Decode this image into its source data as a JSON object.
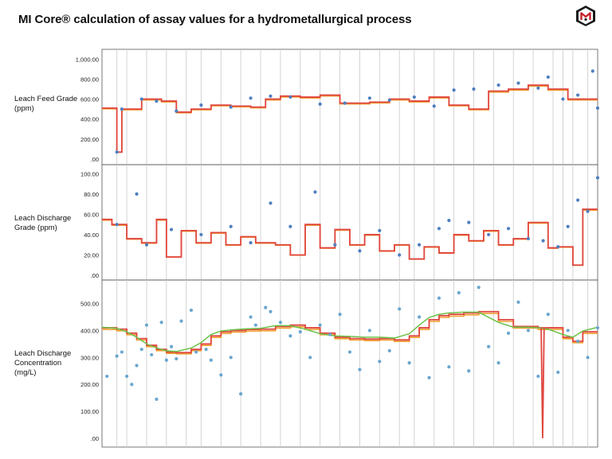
{
  "title": "MI Core® calculation of assay values for a hydrometallurgical process",
  "logo_icon": "mi-cube-logo-icon",
  "colors": {
    "step_line": "#e0463f",
    "orange_line": "#f0a030",
    "green_line": "#6cc24a",
    "points": "#4f7fbf",
    "points_light": "#6aa6cf",
    "grid": "#cfcfcf",
    "border": "#555555"
  },
  "panels": [
    {
      "label_lines": [
        "Leach Feed Grade",
        "(ppm)"
      ]
    },
    {
      "label_lines": [
        "Leach Discharge",
        "Grade (ppm)"
      ]
    },
    {
      "label_lines": [
        "Leach Discharge",
        "Concentration",
        "(mg/L)"
      ]
    }
  ],
  "chart_data": [
    {
      "type": "line",
      "name": "Leach Feed Grade (ppm)",
      "ylim": [
        0,
        1050
      ],
      "yticks": [
        ".00",
        "200.00",
        "400.00",
        "600.00",
        "800.00",
        "1,000.00"
      ],
      "ytick_values": [
        0,
        200,
        400,
        600,
        800,
        1000
      ],
      "grid": true,
      "x": [
        0,
        3,
        4,
        8,
        12,
        15,
        18,
        22,
        26,
        30,
        33,
        36,
        40,
        44,
        48,
        51,
        54,
        58,
        62,
        66,
        70,
        74,
        78,
        82,
        86,
        90,
        94,
        97,
        100
      ],
      "series": [
        {
          "role": "step",
          "values": [
            510,
            70,
            500,
            600,
            580,
            470,
            500,
            540,
            530,
            520,
            600,
            630,
            620,
            640,
            560,
            560,
            570,
            600,
            580,
            620,
            540,
            500,
            680,
            700,
            740,
            700,
            600,
            600,
            620
          ]
        },
        {
          "role": "points",
          "x": [
            3,
            4,
            8,
            11,
            15,
            20,
            26,
            30,
            34,
            38,
            44,
            49,
            54,
            58,
            63,
            67,
            71,
            75,
            80,
            84,
            88,
            90,
            93,
            96,
            99,
            100
          ],
          "values": [
            70,
            500,
            600,
            580,
            480,
            540,
            520,
            610,
            630,
            620,
            550,
            560,
            610,
            590,
            620,
            530,
            690,
            700,
            740,
            760,
            710,
            820,
            600,
            640,
            880,
            510
          ]
        }
      ]
    },
    {
      "type": "line",
      "name": "Leach Discharge Grade (ppm)",
      "ylim": [
        0,
        105
      ],
      "yticks": [
        ".00",
        "20.00",
        "40.00",
        "60.00",
        "80.00",
        "100.00"
      ],
      "ytick_values": [
        0,
        20,
        40,
        60,
        80,
        100
      ],
      "grid": true,
      "x": [
        0,
        2,
        5,
        8,
        11,
        13,
        16,
        19,
        22,
        25,
        28,
        31,
        35,
        38,
        41,
        44,
        47,
        50,
        53,
        56,
        59,
        62,
        65,
        68,
        71,
        74,
        77,
        80,
        83,
        86,
        90,
        92,
        95,
        97,
        100
      ],
      "series": [
        {
          "role": "step",
          "values": [
            55,
            50,
            36,
            32,
            55,
            18,
            44,
            32,
            42,
            30,
            38,
            32,
            30,
            20,
            50,
            27,
            45,
            30,
            40,
            24,
            30,
            16,
            28,
            22,
            40,
            34,
            44,
            30,
            36,
            52,
            27,
            28,
            10,
            65,
            70
          ]
        },
        {
          "role": "points",
          "x": [
            3,
            7,
            9,
            14,
            20,
            26,
            30,
            34,
            38,
            43,
            47,
            52,
            56,
            60,
            64,
            68,
            70,
            74,
            78,
            82,
            86,
            89,
            92,
            94,
            96,
            98,
            100
          ],
          "values": [
            50,
            80,
            30,
            45,
            40,
            48,
            32,
            71,
            48,
            82,
            30,
            24,
            44,
            20,
            30,
            46,
            54,
            52,
            40,
            46,
            36,
            34,
            28,
            48,
            74,
            63,
            96
          ]
        }
      ]
    },
    {
      "type": "line",
      "name": "Leach Discharge Concentration (mg/L)",
      "ylim": [
        0,
        540
      ],
      "yticks": [
        ".00",
        "100.00",
        "200.00",
        "300.00",
        "400.00",
        "500.00"
      ],
      "ytick_values": [
        0,
        100,
        200,
        300,
        400,
        500
      ],
      "grid": true,
      "x": [
        0,
        3,
        5,
        7,
        9,
        11,
        13,
        15,
        18,
        20,
        22,
        24,
        26,
        29,
        32,
        35,
        38,
        41,
        44,
        47,
        50,
        53,
        56,
        59,
        62,
        64,
        66,
        68,
        70,
        73,
        76,
        80,
        83,
        86,
        88,
        90,
        93,
        95,
        97,
        100
      ],
      "series": [
        {
          "role": "step",
          "values": [
            410,
            405,
            390,
            370,
            345,
            330,
            320,
            318,
            330,
            350,
            380,
            395,
            400,
            404,
            405,
            415,
            420,
            410,
            390,
            375,
            370,
            368,
            370,
            365,
            380,
            410,
            440,
            455,
            460,
            465,
            470,
            440,
            415,
            415,
            410,
            410,
            375,
            360,
            395,
            410
          ]
        },
        {
          "role": "green",
          "values": [
            412,
            408,
            395,
            375,
            350,
            335,
            325,
            322,
            335,
            355,
            385,
            398,
            402,
            406,
            408,
            418,
            418,
            405,
            388,
            380,
            378,
            375,
            375,
            372,
            388,
            420,
            448,
            460,
            465,
            468,
            468,
            430,
            412,
            412,
            410,
            405,
            385,
            375,
            398,
            412
          ]
        },
        {
          "role": "dip",
          "x": [
            88.6,
            88.9,
            89.2
          ],
          "values": [
            410,
            0,
            410
          ]
        },
        {
          "role": "points",
          "x": [
            1,
            3,
            4,
            5,
            6,
            7,
            8,
            9,
            10,
            11,
            12,
            13,
            14,
            15,
            16,
            18,
            19,
            21,
            22,
            24,
            26,
            28,
            30,
            31,
            33,
            34,
            36,
            38,
            40,
            42,
            44,
            46,
            48,
            50,
            52,
            54,
            56,
            58,
            60,
            62,
            64,
            66,
            68,
            70,
            72,
            74,
            76,
            78,
            80,
            82,
            84,
            86,
            88,
            90,
            92,
            94,
            96,
            98,
            100
          ],
          "values": [
            230,
            305,
            320,
            230,
            200,
            270,
            330,
            420,
            310,
            145,
            430,
            290,
            340,
            295,
            435,
            475,
            320,
            330,
            290,
            235,
            300,
            165,
            450,
            420,
            485,
            470,
            430,
            380,
            395,
            300,
            420,
            385,
            460,
            320,
            255,
            400,
            285,
            325,
            480,
            280,
            450,
            225,
            520,
            265,
            540,
            250,
            560,
            340,
            280,
            390,
            505,
            400,
            230,
            460,
            245,
            400,
            360,
            300,
            410
          ]
        }
      ]
    }
  ],
  "x_gridlines": [
    3,
    5,
    9,
    13,
    17,
    20,
    24,
    28,
    32,
    36,
    40,
    44,
    48,
    52,
    56,
    60,
    63,
    67,
    71,
    75,
    79,
    83,
    87,
    91,
    93,
    95,
    98
  ]
}
